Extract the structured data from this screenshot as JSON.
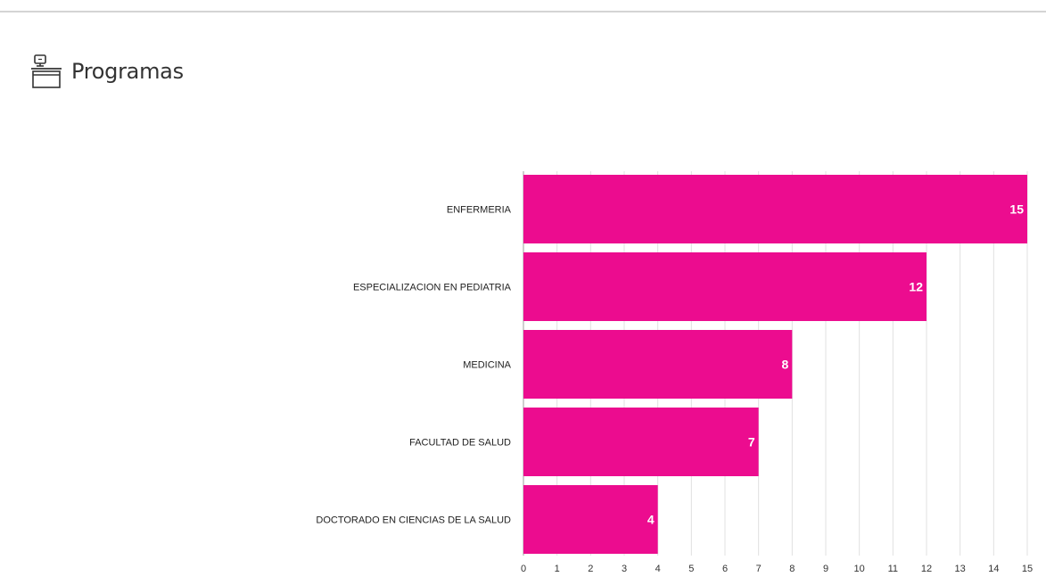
{
  "header": {
    "title": "Programas",
    "icon": "desk-icon"
  },
  "colors": {
    "bar": "#ec0c8f",
    "grid": "#e0e0e0",
    "axis": "#9e9e9e"
  },
  "chart_data": {
    "type": "bar",
    "orientation": "horizontal",
    "categories": [
      "ENFERMERIA",
      "ESPECIALIZACION EN PEDIATRIA",
      "MEDICINA",
      "FACULTAD DE SALUD",
      "DOCTORADO EN CIENCIAS DE LA SALUD"
    ],
    "values": [
      15,
      12,
      8,
      7,
      4
    ],
    "xlim": [
      0,
      15
    ],
    "xticks": [
      0,
      1,
      2,
      3,
      4,
      5,
      6,
      7,
      8,
      9,
      10,
      11,
      12,
      13,
      14,
      15
    ],
    "grid": true,
    "data_labels": true
  }
}
